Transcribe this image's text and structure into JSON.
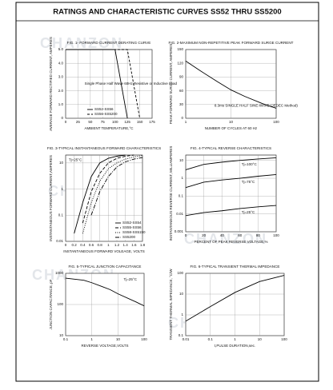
{
  "page_title": "RATINGS AND CHARACTERISTIC CURVES SS52 THRU SS5200",
  "watermark": "CHANZON",
  "chart_data": [
    {
      "type": "line",
      "title": "FIG. 1- FORWARD CURRENT DERATING CURVE",
      "y_label": "AVERAGE FORWARD RECTIFIED CURRENT, AMPERES",
      "x_label": "AMBIENT TEMPERATURE,°C",
      "annotation": "Single Phase Half Wave 60Hz Resistive or Inductive Load",
      "x": [
        0,
        100,
        125,
        150
      ],
      "series": [
        {
          "name": "SS52-SS56",
          "color": "#000000",
          "dash": "none",
          "values": [
            5,
            5,
            0,
            null
          ]
        },
        {
          "name": "SS56-SS5200",
          "color": "#000000",
          "dash": "3 2",
          "values": [
            5,
            5,
            5,
            0
          ]
        }
      ],
      "xlim": [
        0,
        175
      ],
      "xticks": [
        0,
        25,
        50,
        75,
        100,
        125,
        150,
        175
      ],
      "ylim": [
        0,
        5
      ],
      "yticks": [
        0,
        {
          "value": 1,
          "label": "1.0"
        },
        {
          "value": 2,
          "label": "2.0"
        },
        {
          "value": 3,
          "label": "3.0"
        },
        {
          "value": 4,
          "label": "4.0"
        },
        {
          "value": 5,
          "label": "5.0"
        }
      ],
      "xlog": false,
      "ylog": false,
      "grid": true,
      "legend": "lower left"
    },
    {
      "type": "line",
      "title": "FIG. 2-MAXIMUM NON-REPETITIVE PEAK FORWARD SURGE CURRENT",
      "y_label": "PEAK FORWARD SURGE CURRENT, AMPERES",
      "x_label": "NUMBER OF CYCLES AT 60 Hz",
      "annotation": "8.3ms SINGLE HALF SINE-WAVE (JEDEC Method)",
      "x": [
        1,
        2,
        5,
        10,
        20,
        50,
        100
      ],
      "series": [
        {
          "color": "#000000",
          "dash": "none",
          "values": [
            125,
            105,
            80,
            62,
            48,
            32,
            22
          ]
        }
      ],
      "xlim": [
        1,
        100
      ],
      "xticks": [
        1,
        10,
        100
      ],
      "ylim": [
        0,
        150
      ],
      "yticks": [
        0,
        30,
        60,
        90,
        120,
        150
      ],
      "xlog": true,
      "ylog": false,
      "grid": true
    },
    {
      "type": "line",
      "title": "FIG. 3-TYPICAL INSTANTANEOUS FORWARD CHARACTERISTICS",
      "y_label": "INSTANTANEOUS FORWARD CURRENT,AMPERES",
      "x_label": "INSTANTANEOUS FORWARD VOLEAGE, VOLTS",
      "annotation": "Tj=25°C",
      "x": [
        0.2,
        0.4,
        0.6,
        0.8,
        1.0,
        1.2,
        1.4,
        1.6,
        1.8
      ],
      "series": [
        {
          "name": "SS52-SS54",
          "color": "#000000",
          "dash": "none",
          "values": [
            0.02,
            0.3,
            3,
            10,
            15,
            18,
            20,
            null,
            null
          ]
        },
        {
          "name": "SS55-SS56",
          "color": "#000000",
          "dash": "4 2",
          "values": [
            null,
            0.05,
            0.8,
            4,
            10,
            15,
            18,
            20,
            null
          ]
        },
        {
          "name": "SS58-SS5150",
          "color": "#000000",
          "dash": "1 1.5",
          "values": [
            null,
            0.02,
            0.3,
            2,
            6,
            10,
            14,
            17,
            19
          ]
        },
        {
          "name": "SS5200",
          "color": "#000000",
          "dash": "5 1.5 1 1.5",
          "values": [
            null,
            null,
            0.1,
            0.8,
            3,
            7,
            11,
            14,
            16
          ]
        }
      ],
      "xlim": [
        0,
        1.8
      ],
      "xticks": [
        0,
        0.2,
        0.4,
        0.6,
        0.8,
        1.0,
        1.2,
        1.4,
        1.6,
        1.8
      ],
      "ylim": [
        0.01,
        20
      ],
      "yticks": [
        0.01,
        0.1,
        1,
        10
      ],
      "xlog": false,
      "ylog": true,
      "grid": true,
      "legend": "lower right"
    },
    {
      "type": "line",
      "title": "FIG. 4-TYPICAL REVERSE CHARACTERISTICS",
      "y_label": "INSTANTANEOUS REVERSE CURRENT, MILLIAMPERES",
      "x_label": "PERCENT OF PEAK REVERSE VOLTAGE,%",
      "x": [
        0,
        20,
        40,
        60,
        80,
        100
      ],
      "series": [
        {
          "name": "Tj=100°C",
          "color": "#000000",
          "dash": "none",
          "values": [
            3,
            6,
            8,
            10,
            12,
            14
          ]
        },
        {
          "name": "Tj=75°C",
          "color": "#000000",
          "dash": "none",
          "values": [
            0.3,
            0.6,
            0.8,
            1,
            1.3,
            1.6
          ]
        },
        {
          "name": "Tj=25°C",
          "color": "#000000",
          "dash": "none",
          "values": [
            0.008,
            0.012,
            0.015,
            0.02,
            0.025,
            0.03
          ]
        }
      ],
      "xlim": [
        0,
        100
      ],
      "xticks": [
        0,
        20,
        40,
        60,
        80,
        100
      ],
      "ylim": [
        0.001,
        20
      ],
      "yticks": [
        0.001,
        0.01,
        0.1,
        1,
        10
      ],
      "xlog": false,
      "ylog": true,
      "grid": true,
      "legend": "inline"
    },
    {
      "type": "line",
      "title": "FIG. 5-TYPICAL JUNCTION CAPACITANCE",
      "y_label": "JUNCTION CAPACITANCE, pF",
      "x_label": "REVERSE VOLTAGE,VOLTS",
      "annotation": "Tj=25°C",
      "x": [
        0.1,
        0.5,
        1,
        5,
        10,
        50,
        100
      ],
      "series": [
        {
          "color": "#000000",
          "dash": "none",
          "values": [
            700,
            600,
            500,
            300,
            220,
            120,
            90
          ]
        }
      ],
      "xlim": [
        0.1,
        100
      ],
      "xticks": [
        0.1,
        1,
        10,
        100
      ],
      "ylim": [
        10,
        1000
      ],
      "yticks": [
        10,
        100,
        1000
      ],
      "xlog": true,
      "ylog": true,
      "grid": true
    },
    {
      "type": "line",
      "title": "FIG. 6-TYPICAL TRANSIENT THERMAL IMPEDANCE",
      "y_label": "TRANSIENT THERMAL IMPEDANCE, °C/W",
      "x_label": "t,PULSE DURATION,sec.",
      "x": [
        0.01,
        0.1,
        1,
        10,
        100
      ],
      "series": [
        {
          "color": "#000000",
          "dash": "none",
          "values": [
            0.5,
            2.5,
            12,
            40,
            80
          ]
        }
      ],
      "xlim": [
        0.01,
        100
      ],
      "xticks": [
        0.01,
        0.1,
        1,
        10,
        100
      ],
      "ylim": [
        0.1,
        100
      ],
      "yticks": [
        0.1,
        1,
        10,
        100
      ],
      "xlog": true,
      "ylog": true,
      "grid": true
    }
  ]
}
